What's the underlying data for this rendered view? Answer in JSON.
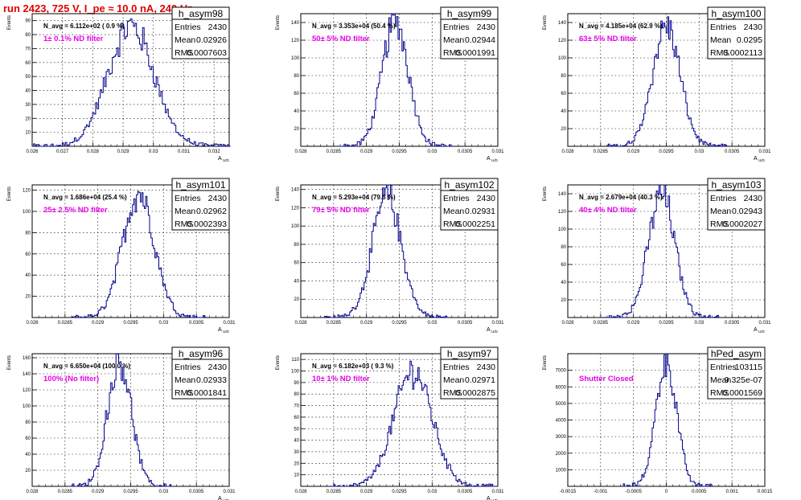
{
  "header": {
    "run_title": "run 2423,   725 V, I_pe ≈ 10.0 nA, 240 Hz"
  },
  "axis_labels": {
    "y": "Events",
    "x_main": "A",
    "x_sub": "U/D"
  },
  "colors": {
    "histogram": "#00008b",
    "filter_text": "#e800e8",
    "title_text": "#e00000",
    "grid": "#000000"
  },
  "chart_data": [
    {
      "type": "bar",
      "name": "h_asym98",
      "navg": "N_avg = 6.112e+02 ( 0.9 %)",
      "filter_label": "1± 0.1% ND filter",
      "stats": {
        "entries": "2430",
        "mean": "0.02926",
        "rms": "0.0007603"
      },
      "xlabel": "A U/D",
      "ylabel": "Events",
      "xlim": [
        0.026,
        0.0325
      ],
      "ylim": [
        0,
        95
      ],
      "xticks": [
        0.026,
        0.027,
        0.028,
        0.029,
        0.03,
        0.031,
        0.032
      ],
      "xtick_labels": [
        "0.026",
        "0.027",
        "0.028",
        "0.029",
        "0.03",
        "0.031",
        "0.032"
      ],
      "yticks": [
        10,
        20,
        30,
        40,
        50,
        60,
        70,
        80,
        90
      ],
      "ytick_labels": [
        "10",
        "20",
        "30",
        "40",
        "50",
        "60",
        "70",
        "80",
        "90"
      ],
      "shape": {
        "mean": 0.02926,
        "sigma": 0.00076,
        "peak": 86,
        "bin_width": 5e-05
      }
    },
    {
      "type": "bar",
      "name": "h_asym99",
      "navg": "N_avg = 3.353e+04 (50.4 %)",
      "filter_label": "50± 5% ND filter",
      "stats": {
        "entries": "2430",
        "mean": "0.02944",
        "rms": "0.0001991"
      },
      "xlabel": "A U/D",
      "ylabel": "Events",
      "xlim": [
        0.028,
        0.031
      ],
      "ylim": [
        0,
        150
      ],
      "xticks": [
        0.028,
        0.0285,
        0.029,
        0.0295,
        0.03,
        0.0305,
        0.031
      ],
      "xtick_labels": [
        "0.028",
        "0.0285",
        "0.029",
        "0.0295",
        "0.03",
        "0.0305",
        "0.031"
      ],
      "yticks": [
        20,
        40,
        60,
        80,
        100,
        120,
        140
      ],
      "ytick_labels": [
        "20",
        "40",
        "60",
        "80",
        "100",
        "120",
        "140"
      ],
      "shape": {
        "mean": 0.02944,
        "sigma": 0.0002,
        "peak": 142,
        "bin_width": 2e-05
      }
    },
    {
      "type": "bar",
      "name": "h_asym100",
      "navg": "N_avg = 4.185e+04 (62.9 %)",
      "filter_label": "63± 5% ND filter",
      "stats": {
        "entries": "2430",
        "mean": "0.0295",
        "rms": "0.0002113"
      },
      "xlabel": "A U/D",
      "ylabel": "Events",
      "xlim": [
        0.028,
        0.031
      ],
      "ylim": [
        0,
        150
      ],
      "xticks": [
        0.028,
        0.0285,
        0.029,
        0.0295,
        0.03,
        0.0305,
        0.031
      ],
      "xtick_labels": [
        "0.028",
        "0.0285",
        "0.029",
        "0.0295",
        "0.03",
        "0.0305",
        "0.031"
      ],
      "yticks": [
        20,
        40,
        60,
        80,
        100,
        120,
        140
      ],
      "ytick_labels": [
        "20",
        "40",
        "60",
        "80",
        "100",
        "120",
        "140"
      ],
      "shape": {
        "mean": 0.0295,
        "sigma": 0.00021,
        "peak": 136,
        "bin_width": 2e-05
      }
    },
    {
      "type": "bar",
      "name": "h_asym101",
      "navg": "N_avg = 1.686e+04 (25.4 %)",
      "filter_label": "25± 2.5% ND filter",
      "stats": {
        "entries": "2430",
        "mean": "0.02962",
        "rms": "0.0002393"
      },
      "xlabel": "A U/D",
      "ylabel": "Events",
      "xlim": [
        0.028,
        0.031
      ],
      "ylim": [
        0,
        125
      ],
      "xticks": [
        0.028,
        0.0285,
        0.029,
        0.0295,
        0.03,
        0.0305,
        0.031
      ],
      "xtick_labels": [
        "0.028",
        "0.0285",
        "0.029",
        "0.0295",
        "0.03",
        "0.0305",
        "0.031"
      ],
      "yticks": [
        20,
        40,
        60,
        80,
        100,
        120
      ],
      "ytick_labels": [
        "20",
        "40",
        "60",
        "80",
        "100",
        "120"
      ],
      "shape": {
        "mean": 0.02962,
        "sigma": 0.00024,
        "peak": 118,
        "bin_width": 2e-05
      }
    },
    {
      "type": "bar",
      "name": "h_asym102",
      "navg": "N_avg = 5.293e+04 (79.6 %)",
      "filter_label": "79± 5% ND filter",
      "stats": {
        "entries": "2430",
        "mean": "0.02931",
        "rms": "0.0002251"
      },
      "xlabel": "A U/D",
      "ylabel": "Events",
      "xlim": [
        0.028,
        0.031
      ],
      "ylim": [
        0,
        145
      ],
      "xticks": [
        0.028,
        0.0285,
        0.029,
        0.0295,
        0.03,
        0.0305,
        0.031
      ],
      "xtick_labels": [
        "0.028",
        "0.0285",
        "0.029",
        "0.0295",
        "0.03",
        "0.0305",
        "0.031"
      ],
      "yticks": [
        20,
        40,
        60,
        80,
        100,
        120,
        140
      ],
      "ytick_labels": [
        "20",
        "40",
        "60",
        "80",
        "100",
        "120",
        "140"
      ],
      "shape": {
        "mean": 0.02931,
        "sigma": 0.00022,
        "peak": 132,
        "bin_width": 2e-05
      }
    },
    {
      "type": "bar",
      "name": "h_asym103",
      "navg": "N_avg = 2.679e+04 (40.3 %)",
      "filter_label": "40± 4% ND filter",
      "stats": {
        "entries": "2430",
        "mean": "0.02943",
        "rms": "0.0002027"
      },
      "xlabel": "A U/D",
      "ylabel": "Events",
      "xlim": [
        0.028,
        0.031
      ],
      "ylim": [
        0,
        150
      ],
      "xticks": [
        0.028,
        0.0285,
        0.029,
        0.0295,
        0.03,
        0.0305,
        0.031
      ],
      "xtick_labels": [
        "0.028",
        "0.0285",
        "0.029",
        "0.0295",
        "0.03",
        "0.0305",
        "0.031"
      ],
      "yticks": [
        20,
        40,
        60,
        80,
        100,
        120,
        140
      ],
      "ytick_labels": [
        "20",
        "40",
        "60",
        "80",
        "100",
        "120",
        "140"
      ],
      "shape": {
        "mean": 0.02943,
        "sigma": 0.0002,
        "peak": 140,
        "bin_width": 2e-05
      }
    },
    {
      "type": "bar",
      "name": "h_asym96",
      "navg": "N_avg = 6.650e+04 (100.0 %)",
      "filter_label": "100% (No filter)",
      "stats": {
        "entries": "2430",
        "mean": "0.02933",
        "rms": "0.0001841"
      },
      "xlabel": "A U/D",
      "ylabel": "Events",
      "xlim": [
        0.028,
        0.031
      ],
      "ylim": [
        0,
        165
      ],
      "xticks": [
        0.028,
        0.0285,
        0.029,
        0.0295,
        0.03,
        0.0305,
        0.031
      ],
      "xtick_labels": [
        "0.028",
        "0.0285",
        "0.029",
        "0.0295",
        "0.03",
        "0.0305",
        "0.031"
      ],
      "yticks": [
        20,
        40,
        60,
        80,
        100,
        120,
        140,
        160
      ],
      "ytick_labels": [
        "20",
        "40",
        "60",
        "80",
        "100",
        "120",
        "140",
        "160"
      ],
      "shape": {
        "mean": 0.02933,
        "sigma": 0.00018,
        "peak": 158,
        "bin_width": 2e-05
      }
    },
    {
      "type": "bar",
      "name": "h_asym97",
      "navg": "N_avg = 6.182e+03 ( 9.3 %)",
      "filter_label": "10± 1% ND filter",
      "stats": {
        "entries": "2430",
        "mean": "0.02971",
        "rms": "0.0002875"
      },
      "xlabel": "A U/D",
      "ylabel": "Events",
      "xlim": [
        0.028,
        0.031
      ],
      "ylim": [
        0,
        115
      ],
      "xticks": [
        0.028,
        0.0285,
        0.029,
        0.0295,
        0.03,
        0.0305,
        0.031
      ],
      "xtick_labels": [
        "0.028",
        "0.0285",
        "0.029",
        "0.0295",
        "0.03",
        "0.0305",
        "0.031"
      ],
      "yticks": [
        10,
        20,
        30,
        40,
        50,
        60,
        70,
        80,
        90,
        100,
        110
      ],
      "ytick_labels": [
        "10",
        "20",
        "30",
        "40",
        "50",
        "60",
        "70",
        "80",
        "90",
        "100",
        "110"
      ],
      "shape": {
        "mean": 0.02971,
        "sigma": 0.00029,
        "peak": 100,
        "bin_width": 2e-05
      }
    },
    {
      "type": "bar",
      "name": "hPed_asym",
      "navg": "",
      "filter_label": "Shutter Closed",
      "stats": {
        "entries": "103115",
        "mean": "9.325e-07",
        "rms": "0.0001569"
      },
      "xlabel": "",
      "ylabel": "Events",
      "xlim": [
        -0.0015,
        0.0015
      ],
      "ylim": [
        0,
        8000
      ],
      "xticks": [
        -0.0015,
        -0.001,
        -0.0005,
        0,
        0.0005,
        0.001,
        0.0015
      ],
      "xtick_labels": [
        "-0.0015",
        "-0.001",
        "-0.0005",
        "0",
        "0.0005",
        "0.001",
        "0.0015"
      ],
      "yticks": [
        1000,
        2000,
        3000,
        4000,
        5000,
        6000,
        7000
      ],
      "ytick_labels": [
        "1000",
        "2000",
        "3000",
        "4000",
        "5000",
        "6000",
        "7000"
      ],
      "shape": {
        "mean": 0.0,
        "sigma": 0.000157,
        "peak": 7600,
        "bin_width": 2e-05
      }
    }
  ]
}
